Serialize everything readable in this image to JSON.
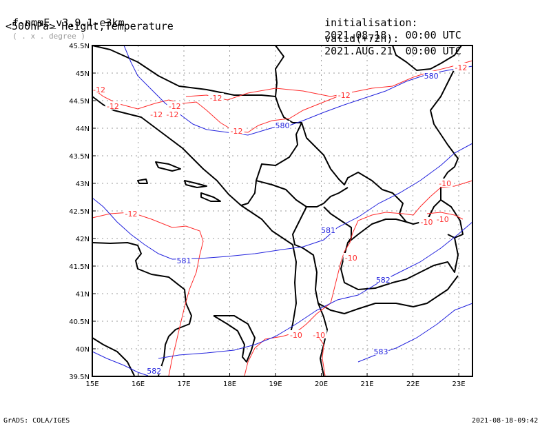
{
  "header": {
    "model": "f-nmmE_v3.9.1-e3km",
    "projection": "( . x . degree )",
    "variable": "<500hPa> Height,Temperature",
    "init_label": "initialisation:",
    "init_value": "2021.08.18.  00:00 UTC",
    "valid_label": "valid(+72h):",
    "valid_value": "2021.AUG.21  00:00 UTC"
  },
  "footer": {
    "left": "GrADS: COLA/IGES",
    "right": "2021-08-18-09:42"
  },
  "axes": {
    "lon_ticks": [
      "15E",
      "16E",
      "17E",
      "18E",
      "19E",
      "20E",
      "21E",
      "22E",
      "23E"
    ],
    "lat_ticks": [
      "39.5N",
      "40N",
      "40.5N",
      "41N",
      "41.5N",
      "42N",
      "42.5N",
      "43N",
      "43.5N",
      "44N",
      "44.5N",
      "45N",
      "45.5N"
    ],
    "lon_range": [
      15,
      23.3
    ],
    "lat_range": [
      39.5,
      45.5
    ]
  },
  "contours": {
    "temperature_color": "#ff2a2a",
    "height_color": "#2222dd",
    "temperature_labels": [
      {
        "text": "-12",
        "lon": 15.15,
        "lat": 44.7
      },
      {
        "text": "-12",
        "lon": 15.45,
        "lat": 44.4
      },
      {
        "text": "-12",
        "lon": 16.4,
        "lat": 44.25
      },
      {
        "text": "-12",
        "lon": 16.8,
        "lat": 44.4
      },
      {
        "text": "-12",
        "lon": 16.75,
        "lat": 44.25
      },
      {
        "text": "-12",
        "lon": 17.7,
        "lat": 44.55
      },
      {
        "text": "-12",
        "lon": 18.15,
        "lat": 43.95
      },
      {
        "text": "-12",
        "lon": 20.5,
        "lat": 44.6
      },
      {
        "text": "-12",
        "lon": 23.05,
        "lat": 45.1
      },
      {
        "text": "-12",
        "lon": 15.85,
        "lat": 42.45
      },
      {
        "text": "-10",
        "lon": 22.7,
        "lat": 43.0
      },
      {
        "text": "-10",
        "lon": 22.3,
        "lat": 42.3
      },
      {
        "text": "-10",
        "lon": 22.65,
        "lat": 42.35
      },
      {
        "text": "-10",
        "lon": 20.65,
        "lat": 41.65
      },
      {
        "text": "-10",
        "lon": 19.45,
        "lat": 40.25
      },
      {
        "text": "-10",
        "lon": 19.95,
        "lat": 40.25
      }
    ],
    "height_labels": [
      {
        "text": "580",
        "lon": 22.4,
        "lat": 44.95
      },
      {
        "text": "580",
        "lon": 19.15,
        "lat": 44.05
      },
      {
        "text": "581",
        "lon": 20.15,
        "lat": 42.15
      },
      {
        "text": "581",
        "lon": 17.0,
        "lat": 41.6
      },
      {
        "text": "582",
        "lon": 21.35,
        "lat": 41.25
      },
      {
        "text": "582",
        "lon": 16.35,
        "lat": 39.6
      },
      {
        "text": "583",
        "lon": 21.3,
        "lat": 39.95
      }
    ]
  }
}
